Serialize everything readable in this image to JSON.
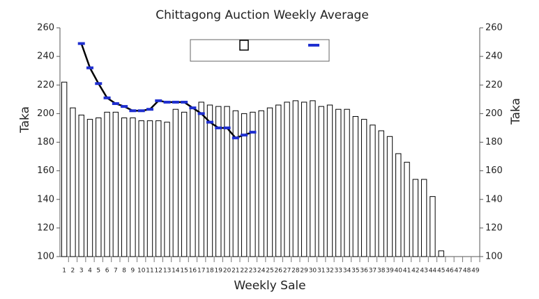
{
  "chart_data": {
    "type": "bar",
    "title": "Chittagong Auction Weekly Average",
    "ylabel": "Taka",
    "y2label": "Taka",
    "xlabel": "Weekly Sale",
    "categories": [
      "1",
      "2",
      "3",
      "4",
      "5",
      "6",
      "7",
      "8",
      "9",
      "10",
      "11",
      "12",
      "13",
      "14",
      "15",
      "16",
      "17",
      "18",
      "19",
      "20",
      "21",
      "22",
      "23",
      "24",
      "25",
      "26",
      "27",
      "28",
      "29",
      "30",
      "31",
      "32",
      "33",
      "34",
      "35",
      "36",
      "37",
      "38",
      "39",
      "40",
      "41",
      "42",
      "43",
      "44",
      "45",
      "46",
      "47",
      "48",
      "49"
    ],
    "series": [
      {
        "type": "bar",
        "color": "#ffffff",
        "edgecolor": "#000000",
        "values": [
          222,
          204,
          199,
          196,
          197,
          201,
          201,
          197,
          197,
          195,
          195,
          195,
          194,
          203,
          201,
          204,
          208,
          206,
          205,
          205,
          202,
          200,
          201,
          202,
          204,
          206,
          208,
          209,
          208,
          209,
          205,
          206,
          203,
          203,
          198,
          196,
          192,
          188,
          184,
          172,
          166,
          154,
          154,
          142,
          104,
          null,
          null,
          null,
          null
        ]
      },
      {
        "type": "line",
        "color": "#000000",
        "marker_color": "#1f2fd0",
        "values": [
          null,
          null,
          249,
          232,
          221,
          211,
          207,
          205,
          202,
          202,
          203,
          209,
          208,
          208,
          208,
          204,
          200,
          194,
          190,
          190,
          183,
          185,
          187,
          null,
          null,
          null,
          null,
          null,
          null,
          null,
          null,
          null,
          null,
          null,
          null,
          null,
          null,
          null,
          null,
          null,
          null,
          null,
          null,
          null,
          null,
          null,
          null,
          null,
          null
        ]
      }
    ],
    "ylim": [
      100,
      260
    ],
    "yticks": [
      100,
      120,
      140,
      160,
      180,
      200,
      220,
      240,
      260
    ],
    "y2lim": [
      100,
      260
    ],
    "y2ticks": [
      100,
      120,
      140,
      160,
      180,
      200,
      220,
      240,
      260
    ],
    "legend": "top"
  }
}
